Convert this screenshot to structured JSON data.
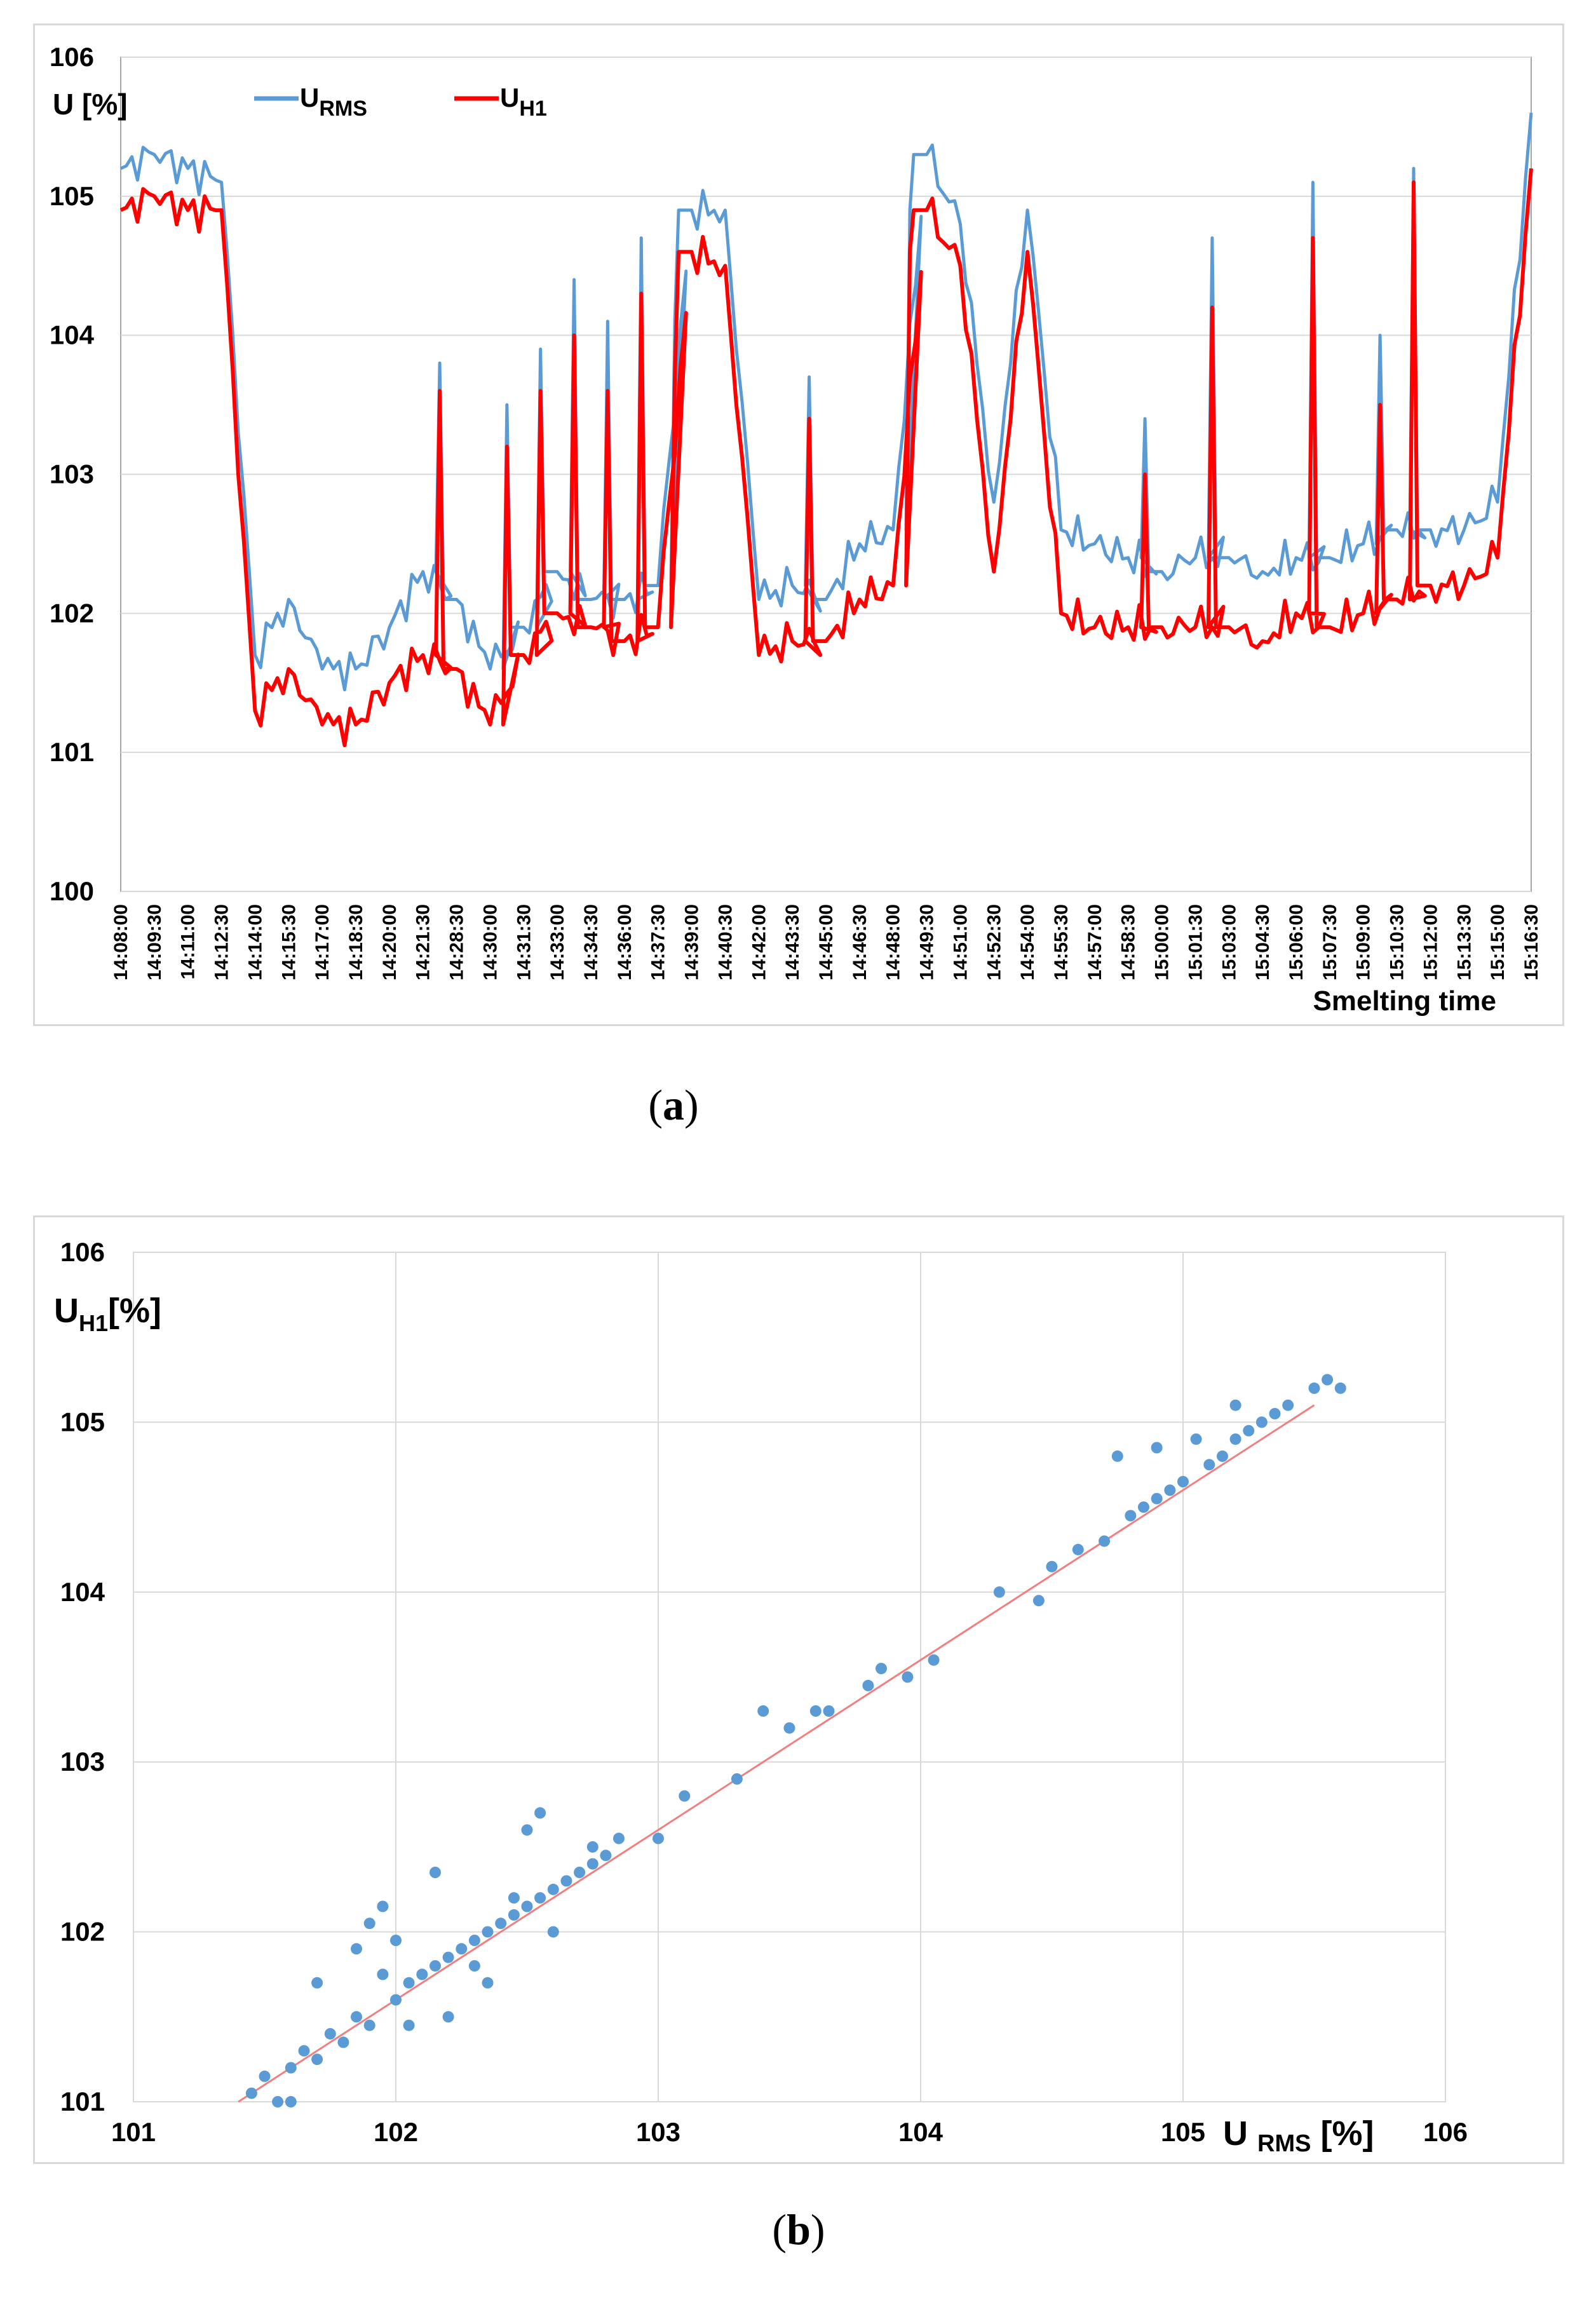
{
  "captions": {
    "a": "a",
    "b": "b"
  },
  "colors": {
    "urms": "#5b9bd5",
    "uh1": "#ff0000",
    "grid": "#d9d9d9",
    "fit": "#f08080",
    "scatter": "#5b9bd5"
  },
  "chart_data": [
    {
      "type": "line",
      "id": "a",
      "ylabel": "U [%]",
      "xlabel": "Smelting time",
      "ylim": [
        100,
        106
      ],
      "yticks": [
        "100",
        "101",
        "102",
        "103",
        "104",
        "105",
        "106"
      ],
      "legend": [
        {
          "base": "U",
          "sub": "RMS"
        },
        {
          "base": "U",
          "sub": "H1"
        }
      ],
      "categories": [
        "14:08:00",
        "14:09:30",
        "14:11:00",
        "14:12:30",
        "14:14:00",
        "14:15:30",
        "14:17:00",
        "14:18:30",
        "14:20:00",
        "14:21:30",
        "14:28:30",
        "14:30:00",
        "14:31:30",
        "14:33:00",
        "14:34:30",
        "14:36:00",
        "14:37:30",
        "14:39:00",
        "14:40:30",
        "14:42:00",
        "14:43:30",
        "14:45:00",
        "14:46:30",
        "14:48:00",
        "14:49:30",
        "14:51:00",
        "14:52:30",
        "14:54:00",
        "14:55:30",
        "14:57:00",
        "14:58:30",
        "15:00:00",
        "15:01:30",
        "15:03:00",
        "15:04:30",
        "15:06:00",
        "15:07:30",
        "15:09:00",
        "15:10:30",
        "15:12:00",
        "15:13:30",
        "15:15:00",
        "15:16:30"
      ],
      "series": [
        {
          "name": "URMS",
          "values": [
            105.2,
            105.3,
            105.2,
            105.1,
            101.7,
            102.1,
            101.6,
            101.6,
            101.9,
            102.3,
            102.1,
            101.6,
            101.9,
            102.3,
            102.1,
            102.1,
            102.2,
            104.9,
            104.9,
            102.1,
            102.2,
            102.1,
            102.5,
            102.6,
            105.3,
            104.8,
            102.8,
            104.9,
            102.6,
            102.5,
            102.4,
            102.3,
            102.4,
            102.4,
            102.3,
            102.4,
            102.4,
            102.5,
            102.6,
            102.6,
            102.6,
            102.8,
            105.6
          ]
        },
        {
          "name": "UH1",
          "values": [
            104.9,
            105.0,
            104.9,
            104.9,
            101.3,
            101.6,
            101.2,
            101.2,
            101.5,
            101.7,
            101.6,
            101.2,
            101.7,
            102.0,
            101.9,
            101.8,
            101.9,
            104.6,
            104.5,
            101.7,
            101.8,
            101.8,
            102.1,
            102.2,
            104.9,
            104.5,
            102.3,
            104.6,
            102.0,
            101.9,
            101.9,
            101.9,
            101.9,
            101.9,
            101.8,
            102.0,
            101.9,
            102.0,
            102.1,
            102.2,
            102.2,
            102.4,
            105.2
          ]
        }
      ],
      "spikes": [
        {
          "cat": "14:21:30",
          "urms": 103.8,
          "uh1": 103.6
        },
        {
          "cat": "14:30:00",
          "urms": 103.5,
          "uh1": 103.2
        },
        {
          "cat": "14:31:30",
          "urms": 103.9,
          "uh1": 103.6
        },
        {
          "cat": "14:33:00",
          "urms": 104.4,
          "uh1": 104.0
        },
        {
          "cat": "14:34:30",
          "urms": 104.1,
          "uh1": 103.6
        },
        {
          "cat": "14:36:00",
          "urms": 104.7,
          "uh1": 104.3
        },
        {
          "cat": "14:37:30",
          "urms": 104.1,
          "uh1": 103.7
        },
        {
          "cat": "14:43:30",
          "urms": 103.7,
          "uh1": 103.4
        },
        {
          "cat": "14:48:00",
          "urms": 104.9,
          "uh1": 104.6
        },
        {
          "cat": "14:58:30",
          "urms": 103.4,
          "uh1": 103.0
        },
        {
          "cat": "15:01:30",
          "urms": 104.7,
          "uh1": 104.2
        },
        {
          "cat": "15:06:00",
          "urms": 105.1,
          "uh1": 104.7
        },
        {
          "cat": "15:09:00",
          "urms": 104.0,
          "uh1": 103.5
        },
        {
          "cat": "15:10:30",
          "urms": 105.2,
          "uh1": 105.1
        }
      ]
    },
    {
      "type": "scatter",
      "id": "b",
      "xlabel": {
        "base": "U",
        "sub": "RMS",
        "unit": "[%]"
      },
      "ylabel": {
        "base": "U",
        "sub": "H1",
        "unit": "[%]"
      },
      "xlim": [
        101,
        106
      ],
      "ylim": [
        101,
        106
      ],
      "xticks": [
        "101",
        "102",
        "103",
        "104",
        "105",
        "106"
      ],
      "yticks": [
        "101",
        "102",
        "103",
        "104",
        "105",
        "106"
      ],
      "fit": {
        "slope": 1.0,
        "intercept": -0.4,
        "x_range": [
          101.4,
          105.5
        ]
      },
      "points": [
        [
          101.45,
          101.05
        ],
        [
          101.5,
          101.15
        ],
        [
          101.55,
          101.0
        ],
        [
          101.6,
          101.2
        ],
        [
          101.65,
          101.3
        ],
        [
          101.7,
          101.25
        ],
        [
          101.75,
          101.4
        ],
        [
          101.8,
          101.35
        ],
        [
          101.85,
          101.5
        ],
        [
          101.9,
          101.45
        ],
        [
          101.85,
          101.9
        ],
        [
          101.9,
          102.05
        ],
        [
          101.95,
          102.15
        ],
        [
          101.95,
          101.75
        ],
        [
          102.0,
          101.6
        ],
        [
          102.05,
          101.7
        ],
        [
          102.1,
          101.75
        ],
        [
          102.15,
          101.8
        ],
        [
          102.2,
          101.85
        ],
        [
          102.15,
          102.35
        ],
        [
          102.25,
          101.9
        ],
        [
          102.3,
          101.95
        ],
        [
          102.35,
          102.0
        ],
        [
          102.4,
          102.05
        ],
        [
          102.45,
          102.1
        ],
        [
          102.5,
          102.15
        ],
        [
          102.55,
          102.2
        ],
        [
          102.6,
          102.25
        ],
        [
          102.55,
          102.7
        ],
        [
          102.65,
          102.3
        ],
        [
          102.7,
          102.35
        ],
        [
          102.75,
          102.4
        ],
        [
          102.8,
          102.45
        ],
        [
          102.85,
          102.55
        ],
        [
          103.0,
          102.55
        ],
        [
          103.1,
          102.8
        ],
        [
          103.3,
          102.9
        ],
        [
          103.4,
          103.3
        ],
        [
          103.5,
          103.2
        ],
        [
          103.65,
          103.3
        ],
        [
          103.8,
          103.45
        ],
        [
          103.85,
          103.55
        ],
        [
          103.95,
          103.5
        ],
        [
          104.05,
          103.6
        ],
        [
          104.3,
          104.0
        ],
        [
          104.45,
          103.95
        ],
        [
          104.5,
          104.15
        ],
        [
          104.6,
          104.25
        ],
        [
          104.7,
          104.3
        ],
        [
          104.75,
          104.8
        ],
        [
          104.8,
          104.45
        ],
        [
          104.85,
          104.5
        ],
        [
          104.9,
          104.55
        ],
        [
          104.95,
          104.6
        ],
        [
          105.0,
          104.65
        ],
        [
          105.1,
          104.75
        ],
        [
          105.15,
          104.8
        ],
        [
          105.2,
          104.9
        ],
        [
          105.25,
          104.95
        ],
        [
          105.3,
          105.0
        ],
        [
          105.35,
          105.05
        ],
        [
          105.5,
          105.2
        ],
        [
          105.55,
          105.25
        ],
        [
          105.6,
          105.2
        ],
        [
          105.4,
          105.1
        ],
        [
          105.2,
          105.1
        ],
        [
          102.35,
          101.7
        ],
        [
          102.0,
          101.95
        ],
        [
          101.7,
          101.7
        ],
        [
          102.6,
          102.0
        ],
        [
          102.45,
          102.2
        ],
        [
          102.3,
          101.8
        ],
        [
          102.75,
          102.5
        ],
        [
          102.2,
          101.5
        ],
        [
          101.6,
          101.0
        ],
        [
          102.05,
          101.45
        ],
        [
          102.5,
          102.6
        ],
        [
          103.6,
          103.3
        ],
        [
          104.9,
          104.85
        ],
        [
          105.05,
          104.9
        ]
      ]
    }
  ]
}
